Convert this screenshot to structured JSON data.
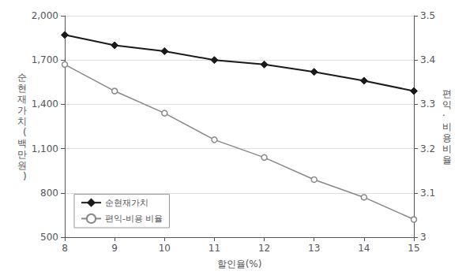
{
  "chart_data": {
    "type": "line",
    "x": [
      8,
      9,
      10,
      11,
      12,
      13,
      14,
      15
    ],
    "xlabel": "할인율(%)",
    "ylabel": "순현재가치(백만원)",
    "y2label": "편익·비용비율",
    "xlim": [
      8,
      15
    ],
    "xticks": [
      8,
      9,
      10,
      11,
      12,
      13,
      14,
      15
    ],
    "ylim": [
      500,
      2000
    ],
    "yticks": [
      500,
      800,
      {
        "value": 1100,
        "label": "1,100"
      },
      {
        "value": 1400,
        "label": "1,400"
      },
      {
        "value": 1700,
        "label": "1,700"
      },
      {
        "value": 2000,
        "label": "2,000"
      }
    ],
    "y2lim": [
      3.0,
      3.5
    ],
    "y2ticks": [
      3,
      3.1,
      3.2,
      3.3,
      3.4,
      3.5
    ],
    "grid": true,
    "legend": "lower left",
    "series": [
      {
        "name": "순현재가치",
        "color": "#1a1a1a",
        "marker": "diamond",
        "line_style": "solid",
        "values": [
          1870,
          1800,
          1760,
          1700,
          1670,
          1620,
          1560,
          1490
        ]
      },
      {
        "name": "편익-비용 비율",
        "color": "#888888",
        "marker": "circle",
        "line_style": "solid",
        "axis": "y2",
        "values": [
          3.39,
          3.33,
          3.28,
          3.22,
          3.18,
          3.13,
          3.09,
          3.04
        ]
      }
    ]
  }
}
